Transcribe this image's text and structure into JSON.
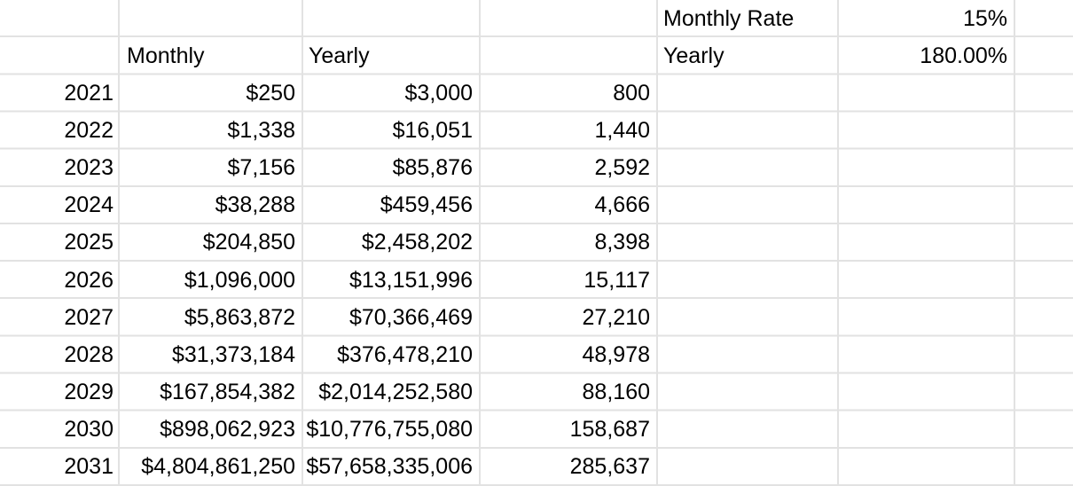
{
  "colors": {
    "background": "#ffffff",
    "gridline": "#e2e2e2",
    "text": "#000000"
  },
  "rates": {
    "monthly_label": "Monthly Rate",
    "monthly_value": "15%",
    "yearly_label": "Yearly",
    "yearly_value": "180.00%"
  },
  "table": {
    "headers": {
      "monthly": "Monthly",
      "yearly": "Yearly"
    },
    "rows": [
      {
        "year": "2021",
        "monthly": "$250",
        "yearly": "$3,000",
        "count": "800"
      },
      {
        "year": "2022",
        "monthly": "$1,338",
        "yearly": "$16,051",
        "count": "1,440"
      },
      {
        "year": "2023",
        "monthly": "$7,156",
        "yearly": "$85,876",
        "count": "2,592"
      },
      {
        "year": "2024",
        "monthly": "$38,288",
        "yearly": "$459,456",
        "count": "4,666"
      },
      {
        "year": "2025",
        "monthly": "$204,850",
        "yearly": "$2,458,202",
        "count": "8,398"
      },
      {
        "year": "2026",
        "monthly": "$1,096,000",
        "yearly": "$13,151,996",
        "count": "15,117"
      },
      {
        "year": "2027",
        "monthly": "$5,863,872",
        "yearly": "$70,366,469",
        "count": "27,210"
      },
      {
        "year": "2028",
        "monthly": "$31,373,184",
        "yearly": "$376,478,210",
        "count": "48,978"
      },
      {
        "year": "2029",
        "monthly": "$167,854,382",
        "yearly": "$2,014,252,580",
        "count": "88,160"
      },
      {
        "year": "2030",
        "monthly": "$898,062,923",
        "yearly": "$10,776,755,080",
        "count": "158,687"
      },
      {
        "year": "2031",
        "monthly": "$4,804,861,250",
        "yearly": "$57,658,335,006",
        "count": "285,637"
      }
    ]
  }
}
